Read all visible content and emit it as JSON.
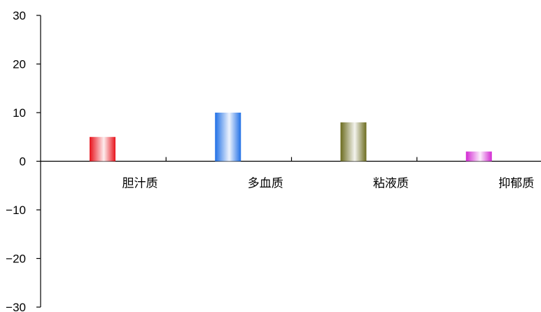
{
  "chart_data": {
    "type": "bar",
    "categories": [
      "胆汁质",
      "多血质",
      "粘液质",
      "抑郁质"
    ],
    "values": [
      5,
      10,
      8,
      2
    ],
    "ylim": [
      -30,
      30
    ],
    "yticks": [
      30,
      20,
      10,
      0,
      -10,
      -20,
      -30
    ],
    "ytick_labels": [
      "30",
      "20",
      "10",
      "0",
      "−10",
      "−20",
      "−30"
    ],
    "bar_colors": [
      "#e8121b",
      "#1f6fe6",
      "#6b6b1e",
      "#d228d2"
    ],
    "grid": false,
    "legend": "none"
  }
}
